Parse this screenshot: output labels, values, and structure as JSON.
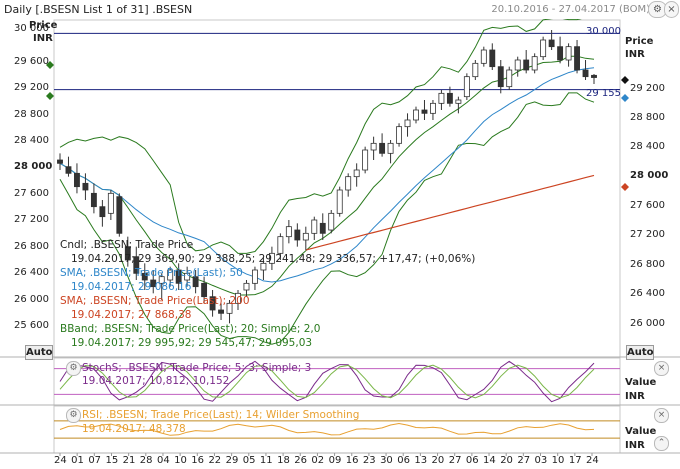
{
  "header": {
    "title": "Daily [.BSESN List 1 of 31] .BSESN",
    "date_range": "20.10.2016 - 27.04.2017 (BOM)",
    "settings_label": "⚙",
    "close_label": "×"
  },
  "main_panel": {
    "left_axis_title": "Price",
    "left_axis_unit": "INR",
    "right_axis_title": "Price",
    "right_axis_unit": "INR",
    "left_ticks": [
      "30 000",
      "29 600",
      "29 200",
      "28 800",
      "28 400",
      "28 000",
      "27 600",
      "27 200",
      "26 800",
      "26 400",
      "26 000",
      "25 600"
    ],
    "right_ticks": [
      "29 200",
      "28 800",
      "28 400",
      "28 000",
      "27 600",
      "27 200",
      "26 800",
      "26 400",
      "26 000"
    ],
    "hline_upper_label": "30 000",
    "hline_lower_label": "29 155",
    "auto_label": "Auto",
    "legend": {
      "cndl_name": "Cndl; .BSESN; Trade Price",
      "cndl_values": "19.04.2017; 29 369,90; 29 388,25; 29 241,48; 29 336,57; +17,47; (+0,06%)",
      "sma50_name": "SMA; .BSESN; Trade Price(Last);  50",
      "sma50_values": "19.04.2017; 29 086,16",
      "sma200_name": "SMA; .BSESN; Trade Price(Last);  200",
      "sma200_values": "19.04.2017; 27 868,38",
      "bband_name": "BBand; .BSESN; Trade Price(Last);  20; Simple; 2,0",
      "bband_values": "19.04.2017; 29 995,92; 29 545,47; 29 095,03"
    },
    "colors": {
      "candle": "#333333",
      "sma50": "#2e86c9",
      "sma200": "#cc4422",
      "bband": "#2a7a1e",
      "hline": "#1a237e"
    }
  },
  "stoch_panel": {
    "legend_name": "StochS; .BSESN; Trade Price;  5; 3; Simple; 3",
    "legend_values": "19.04.2017; 10,812;  10,152",
    "value_title": "Value",
    "value_unit": "INR",
    "auto_label": "Auto",
    "colors": {
      "k": "#7a2a8a",
      "d": "#7ab648",
      "band": "#c060c0"
    }
  },
  "rsi_panel": {
    "legend_name": "RSI; .BSESN; Trade Price(Last);  14; Wilder Smoothing",
    "legend_values": "19.04.2017; 48,378",
    "value_title": "Value",
    "value_unit": "INR",
    "colors": {
      "line": "#e8a030",
      "band": "#c08a20"
    }
  },
  "x_axis": {
    "labels": [
      "24",
      "01",
      "07",
      "15",
      "21",
      "28",
      "04",
      "10",
      "16",
      "22",
      "29",
      "05",
      "11",
      "18",
      "26",
      "02",
      "09",
      "16",
      "23",
      "30",
      "06",
      "13",
      "20",
      "27",
      "06",
      "14",
      "20",
      "27",
      "03",
      "10",
      "17",
      "24"
    ]
  },
  "chart_data": {
    "type": "candlestick",
    "title": "Daily [.BSESN List 1 of 31] .BSESN",
    "date_range": "20.10.2016 - 27.04.2017",
    "yunit": "INR",
    "ylim": [
      25400,
      30200
    ],
    "hlines": [
      30000,
      29155
    ],
    "ohlc": [
      [
        28100,
        28200,
        27950,
        28050
      ],
      [
        28000,
        28150,
        27850,
        27900
      ],
      [
        27900,
        28050,
        27600,
        27700
      ],
      [
        27750,
        27900,
        27500,
        27650
      ],
      [
        27600,
        27750,
        27300,
        27400
      ],
      [
        27400,
        27500,
        27100,
        27250
      ],
      [
        27300,
        27650,
        27200,
        27600
      ],
      [
        27550,
        27600,
        26950,
        27000
      ],
      [
        26800,
        26950,
        26500,
        26600
      ],
      [
        26650,
        26800,
        26300,
        26400
      ],
      [
        26400,
        26550,
        26150,
        26300
      ],
      [
        26300,
        26450,
        26100,
        26200
      ],
      [
        26250,
        26400,
        26000,
        26350
      ],
      [
        26300,
        26500,
        26200,
        26450
      ],
      [
        26450,
        26550,
        26150,
        26250
      ],
      [
        26300,
        26500,
        26200,
        26400
      ],
      [
        26350,
        26450,
        26100,
        26200
      ],
      [
        26250,
        26350,
        25950,
        26050
      ],
      [
        26050,
        26150,
        25750,
        25850
      ],
      [
        25850,
        25950,
        25700,
        25800
      ],
      [
        25800,
        26000,
        25650,
        25950
      ],
      [
        25950,
        26150,
        25850,
        26100
      ],
      [
        26150,
        26300,
        26050,
        26250
      ],
      [
        26250,
        26500,
        26150,
        26450
      ],
      [
        26450,
        26650,
        26300,
        26550
      ],
      [
        26550,
        26800,
        26450,
        26700
      ],
      [
        26700,
        27000,
        26600,
        26950
      ],
      [
        26950,
        27200,
        26850,
        27100
      ],
      [
        27050,
        27150,
        26800,
        26900
      ],
      [
        26900,
        27100,
        26750,
        27000
      ],
      [
        27000,
        27250,
        26900,
        27200
      ],
      [
        27150,
        27300,
        26900,
        27000
      ],
      [
        27050,
        27350,
        27000,
        27300
      ],
      [
        27300,
        27700,
        27250,
        27650
      ],
      [
        27650,
        27900,
        27550,
        27850
      ],
      [
        27850,
        28050,
        27700,
        27950
      ],
      [
        27950,
        28300,
        27900,
        28250
      ],
      [
        28250,
        28450,
        28100,
        28350
      ],
      [
        28350,
        28500,
        28150,
        28200
      ],
      [
        28200,
        28400,
        28050,
        28350
      ],
      [
        28350,
        28650,
        28300,
        28600
      ],
      [
        28600,
        28800,
        28450,
        28700
      ],
      [
        28700,
        28900,
        28650,
        28850
      ],
      [
        28850,
        29000,
        28700,
        28800
      ],
      [
        28800,
        29000,
        28700,
        28950
      ],
      [
        28950,
        29150,
        28850,
        29100
      ],
      [
        29100,
        29200,
        28900,
        28950
      ],
      [
        28950,
        29050,
        28800,
        29000
      ],
      [
        29050,
        29400,
        29000,
        29350
      ],
      [
        29350,
        29600,
        29300,
        29550
      ],
      [
        29550,
        29800,
        29500,
        29750
      ],
      [
        29750,
        29850,
        29450,
        29500
      ],
      [
        29500,
        29600,
        29100,
        29200
      ],
      [
        29200,
        29500,
        29150,
        29450
      ],
      [
        29450,
        29650,
        29350,
        29600
      ],
      [
        29600,
        29750,
        29400,
        29450
      ],
      [
        29450,
        29700,
        29400,
        29650
      ],
      [
        29650,
        29950,
        29600,
        29900
      ],
      [
        29900,
        30050,
        29750,
        29800
      ],
      [
        29800,
        29950,
        29550,
        29600
      ],
      [
        29600,
        29850,
        29500,
        29800
      ],
      [
        29800,
        29900,
        29400,
        29450
      ],
      [
        29450,
        29600,
        29300,
        29350
      ],
      [
        29370,
        29390,
        29240,
        29337
      ]
    ],
    "series": [
      {
        "name": "SMA; .BSESN; Trade Price(Last);  50",
        "last": 29086.16
      },
      {
        "name": "SMA; .BSESN; Trade Price(Last);  200",
        "last": 27868.38
      },
      {
        "name": "BBand; .BSESN; Trade Price(Last);  20; Simple; 2,0",
        "last": [
          29995.92,
          29545.47,
          29095.03
        ]
      }
    ]
  }
}
